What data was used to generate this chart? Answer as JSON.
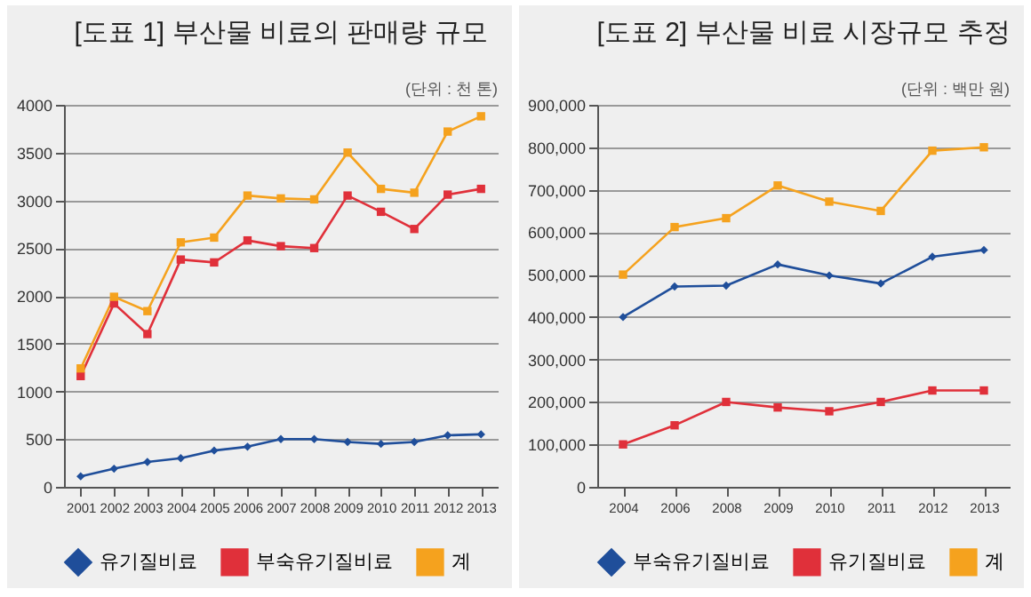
{
  "chart_data": [
    {
      "type": "line",
      "title": "[도표 1] 부산물 비료의 판매량 규모",
      "subtitle": "(단위 : 천 톤)",
      "categories": [
        "2001",
        "2002",
        "2003",
        "2004",
        "2005",
        "2006",
        "2007",
        "2008",
        "2009",
        "2010",
        "2011",
        "2012",
        "2013"
      ],
      "series": [
        {
          "name": "유기질비료",
          "color": "#1f4e9a",
          "marker": "diamond",
          "values": [
            110,
            190,
            260,
            300,
            380,
            420,
            500,
            500,
            470,
            450,
            470,
            540,
            550
          ]
        },
        {
          "name": "부숙유기질비료",
          "color": "#e0303a",
          "marker": "square",
          "values": [
            1160,
            1920,
            1600,
            2380,
            2350,
            2580,
            2520,
            2500,
            3050,
            2880,
            2700,
            3060,
            3120
          ]
        },
        {
          "name": "계",
          "color": "#f5a21e",
          "marker": "square",
          "values": [
            1240,
            1990,
            1840,
            2560,
            2610,
            3050,
            3020,
            3010,
            3500,
            3120,
            3080,
            3720,
            3880
          ]
        }
      ],
      "ylim": [
        0,
        4000
      ],
      "yticks": [
        0,
        500,
        1000,
        1500,
        2000,
        2500,
        3000,
        3500,
        4000
      ],
      "grid": "y",
      "legend": "bottom"
    },
    {
      "type": "line",
      "title": "[도표 2] 부산물 비료 시장규모 추정",
      "subtitle": "(단위 : 백만 원)",
      "categories": [
        "2004",
        "2006",
        "2008",
        "2009",
        "2010",
        "2011",
        "2012",
        "2013"
      ],
      "series": [
        {
          "name": "부숙유기질비료",
          "color": "#1f4e9a",
          "marker": "diamond",
          "values": [
            400000,
            472000,
            474000,
            524000,
            498000,
            479000,
            542000,
            558000
          ]
        },
        {
          "name": "유기질비료",
          "color": "#e0303a",
          "marker": "square",
          "values": [
            100000,
            145000,
            200000,
            187000,
            178000,
            200000,
            227000,
            227000
          ]
        },
        {
          "name": "계",
          "color": "#f5a21e",
          "marker": "square",
          "values": [
            500000,
            612000,
            633000,
            710000,
            672000,
            650000,
            792000,
            800000
          ]
        }
      ],
      "ylim": [
        0,
        900000
      ],
      "yticks": [
        0,
        {
          "value": 100000,
          "label": "100,000"
        },
        {
          "value": 200000,
          "label": "200,000"
        },
        {
          "value": 300000,
          "label": "300,000"
        },
        {
          "value": 400000,
          "label": "400,000"
        },
        {
          "value": 500000,
          "label": "500,000"
        },
        {
          "value": 600000,
          "label": "600,000"
        },
        {
          "value": 700000,
          "label": "700,000"
        },
        {
          "value": 800000,
          "label": "800,000"
        },
        {
          "value": 900000,
          "label": "900,000"
        }
      ],
      "grid": "y",
      "legend": "bottom"
    }
  ]
}
